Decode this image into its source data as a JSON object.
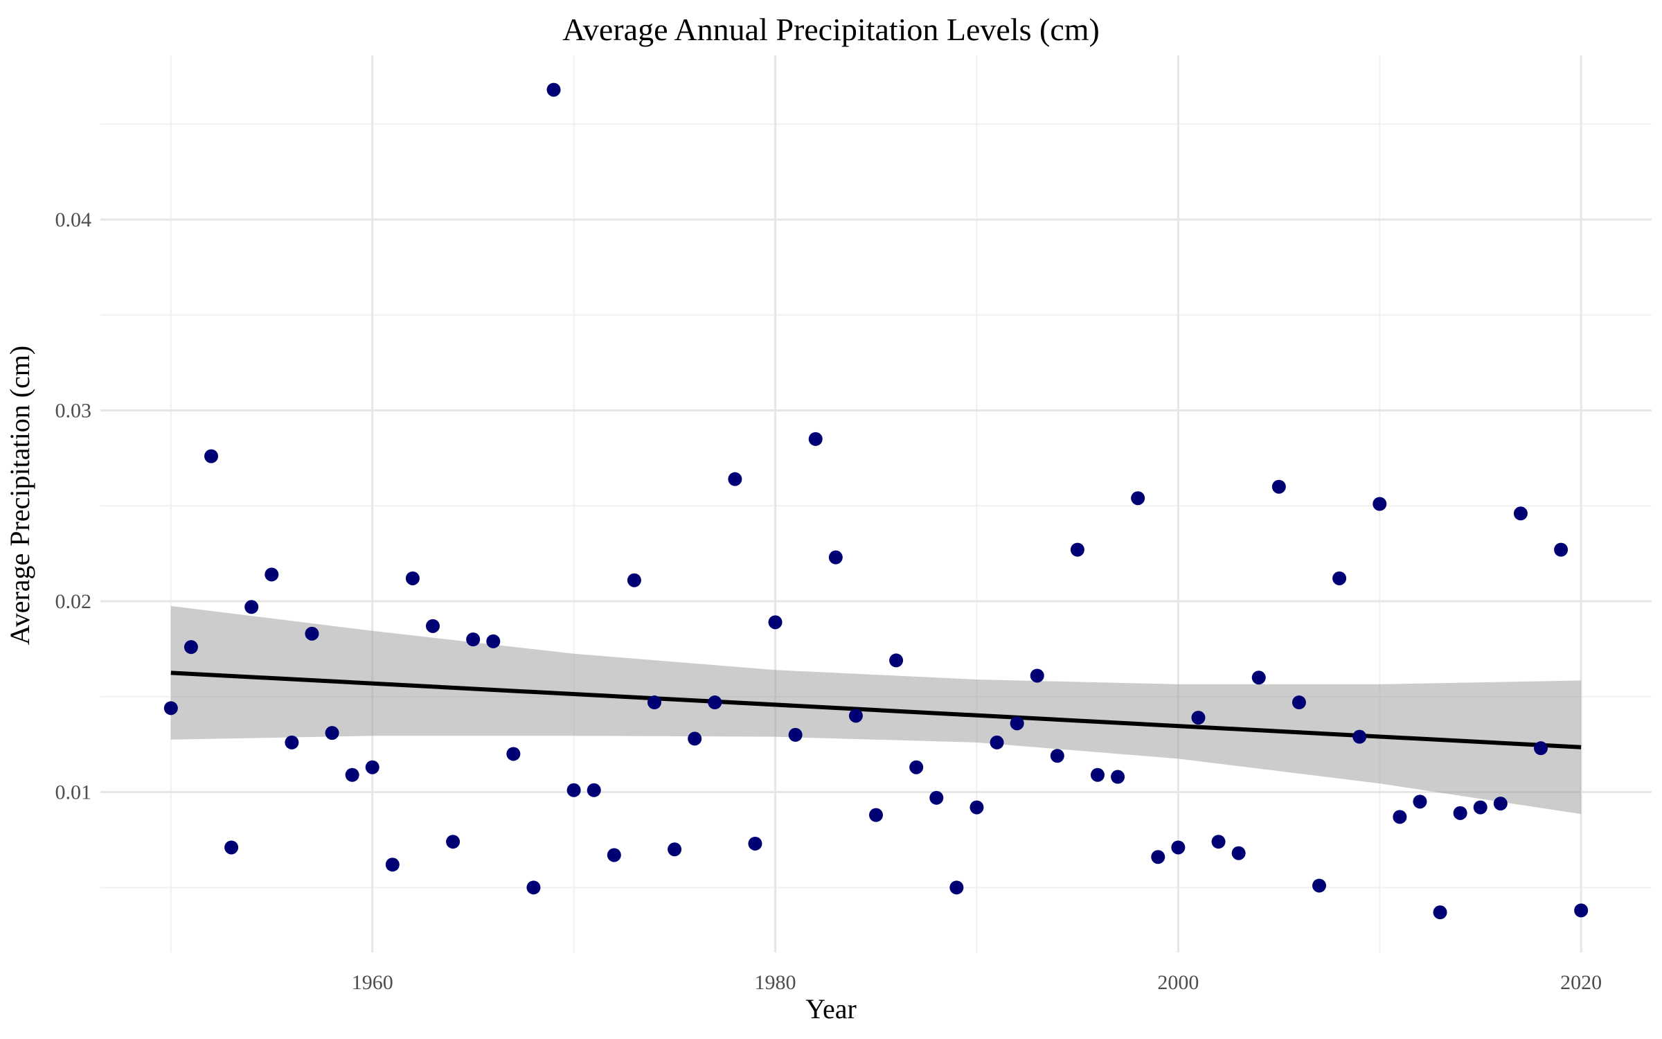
{
  "chart_data": {
    "type": "scatter",
    "title": "Average Annual Precipitation Levels (cm)",
    "xlabel": "Year",
    "ylabel": "Average Precipitation (cm)",
    "xlim": [
      1946.5,
      2023.5
    ],
    "ylim": [
      0.0016,
      0.0486
    ],
    "x_ticks": [
      1960,
      1980,
      2000,
      2020
    ],
    "y_ticks": [
      0.01,
      0.02,
      0.03,
      0.04
    ],
    "x_tick_labels": [
      "1960",
      "1980",
      "2000",
      "2020"
    ],
    "y_tick_labels": [
      "0.01",
      "0.02",
      "0.03",
      "0.04"
    ],
    "x_minor_ticks": [
      1950,
      1970,
      1990,
      2010
    ],
    "y_minor_ticks": [
      0.005,
      0.015,
      0.025,
      0.035,
      0.045
    ],
    "grid": true,
    "point_color": "#000075",
    "trend": {
      "method": "linear",
      "x": [
        1950,
        2020
      ],
      "y": [
        0.01625,
        0.01235
      ],
      "ribbon_x": [
        1950,
        1960,
        1970,
        1980,
        1990,
        2000,
        2010,
        2020
      ],
      "ribbon_lower": [
        0.01275,
        0.01295,
        0.01295,
        0.0129,
        0.0126,
        0.01175,
        0.01045,
        0.00885
      ],
      "ribbon_upper": [
        0.01975,
        0.01845,
        0.01725,
        0.0164,
        0.0159,
        0.01565,
        0.01565,
        0.01585
      ],
      "ribbon_color": "#999999",
      "line_color": "#000000"
    },
    "x": [
      1950,
      1951,
      1952,
      1953,
      1954,
      1955,
      1956,
      1957,
      1958,
      1959,
      1960,
      1961,
      1962,
      1963,
      1964,
      1965,
      1966,
      1967,
      1968,
      1969,
      1970,
      1971,
      1972,
      1973,
      1974,
      1975,
      1976,
      1977,
      1978,
      1979,
      1980,
      1981,
      1982,
      1983,
      1984,
      1985,
      1986,
      1987,
      1988,
      1989,
      1990,
      1991,
      1992,
      1993,
      1994,
      1995,
      1996,
      1997,
      1998,
      1999,
      2000,
      2001,
      2002,
      2003,
      2004,
      2005,
      2006,
      2007,
      2008,
      2009,
      2010,
      2011,
      2012,
      2013,
      2014,
      2015,
      2016,
      2017,
      2018,
      2019,
      2020
    ],
    "y": [
      0.0144,
      0.0176,
      0.0276,
      0.0071,
      0.0197,
      0.0214,
      0.0126,
      0.0183,
      0.0131,
      0.0109,
      0.0113,
      0.0062,
      0.0212,
      0.0187,
      0.0074,
      0.018,
      0.0179,
      0.012,
      0.005,
      0.0468,
      0.0101,
      0.0101,
      0.0067,
      0.0211,
      0.0147,
      0.007,
      0.0128,
      0.0147,
      0.0264,
      0.0073,
      0.0189,
      0.013,
      0.0285,
      0.0223,
      0.014,
      0.0088,
      0.0169,
      0.0113,
      0.0097,
      0.005,
      0.0092,
      0.0126,
      0.0136,
      0.0161,
      0.0119,
      0.0227,
      0.0109,
      0.0108,
      0.0254,
      0.0066,
      0.0071,
      0.0139,
      0.0074,
      0.0068,
      0.016,
      0.026,
      0.0147,
      0.0051,
      0.0212,
      0.0129,
      0.0251,
      0.0087,
      0.0095,
      0.0037,
      0.0089,
      0.0092,
      0.0094,
      0.0246,
      0.0123,
      0.0227,
      0.0038
    ]
  }
}
